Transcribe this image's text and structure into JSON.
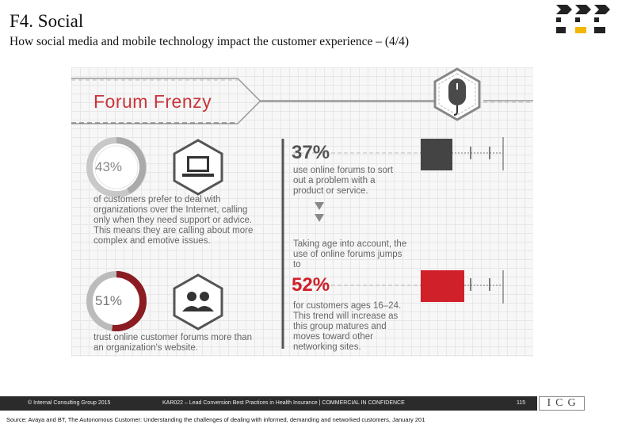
{
  "header": {
    "title": "F4. Social",
    "subtitle": "How social media and mobile technology impact the customer experience – (4/4)"
  },
  "infographic": {
    "heading": "Forum Frenzy",
    "stat_a": {
      "percent": "43%",
      "value": 43,
      "description": "of customers prefer to deal with organizations over the Internet, calling only when they need support or advice. This means they are calling about more complex and emotive issues.",
      "icon": "laptop-icon"
    },
    "stat_b": {
      "percent": "51%",
      "value": 51,
      "description": "trust online customer forums more than an organization's website.",
      "icon": "people-icon"
    },
    "stat_c": {
      "percent": "37%",
      "value": 37,
      "description": "use online forums to sort out a problem with a product or service."
    },
    "transition": "Taking age into account, the use of online forums jumps to",
    "stat_d": {
      "percent": "52%",
      "value": 52,
      "description": "for customers ages 16–24. This trend will increase as this group matures and moves toward other networking sites."
    },
    "mouse_icon": "mouse-icon",
    "colors": {
      "accent": "#c9343a",
      "dark_bar": "#444444",
      "red_bar": "#d0202a"
    }
  },
  "footer": {
    "copyright": "© Internal Consulting Group 2015",
    "document": "KAR022 – Lead Conversion Best Practices in Health Insurance | COMMERCIAL IN CONFIDENCE",
    "page": "115",
    "brand": "ICG"
  },
  "source": "Source: Avaya and BT, The Autonomous Customer: Understanding the challenges of dealing with informed, demanding and networked customers, January 201"
}
